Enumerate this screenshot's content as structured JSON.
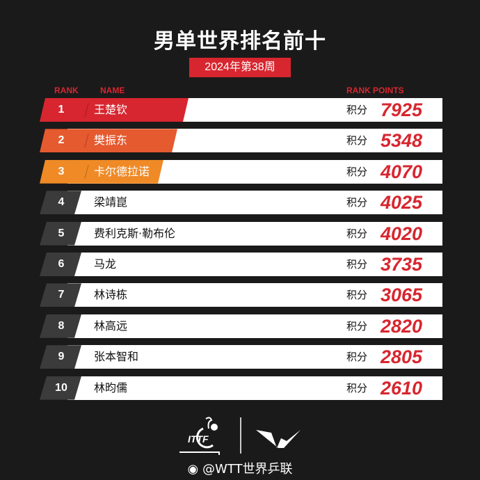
{
  "title": "男单世界排名前十",
  "week": "2024年第38周",
  "headers": {
    "rank": "RANK",
    "name": "NAME",
    "points": "RANK POINTS"
  },
  "points_label": "积分",
  "colors": {
    "rank1": "#d7262f",
    "rank2": "#e55a2f",
    "rank3": "#ef8a26",
    "rest": "#3b3b3b",
    "points": "#d7262f"
  },
  "rows": [
    {
      "rank": "1",
      "name": "王楚钦",
      "points": "7925"
    },
    {
      "rank": "2",
      "name": "樊振东",
      "points": "5348"
    },
    {
      "rank": "3",
      "name": "卡尔德拉诺",
      "points": "4070"
    },
    {
      "rank": "4",
      "name": "梁靖崑",
      "points": "4025"
    },
    {
      "rank": "5",
      "name": "费利克斯·勒布伦",
      "points": "4020"
    },
    {
      "rank": "6",
      "name": "马龙",
      "points": "3735"
    },
    {
      "rank": "7",
      "name": "林诗栋",
      "points": "3065"
    },
    {
      "rank": "8",
      "name": "林高远",
      "points": "2820"
    },
    {
      "rank": "9",
      "name": "张本智和",
      "points": "2805"
    },
    {
      "rank": "10",
      "name": "林昀儒",
      "points": "2610"
    }
  ],
  "footer": {
    "logo1": "ITTF",
    "logo2": "WTT",
    "handle": "@WTT世界乒联"
  }
}
